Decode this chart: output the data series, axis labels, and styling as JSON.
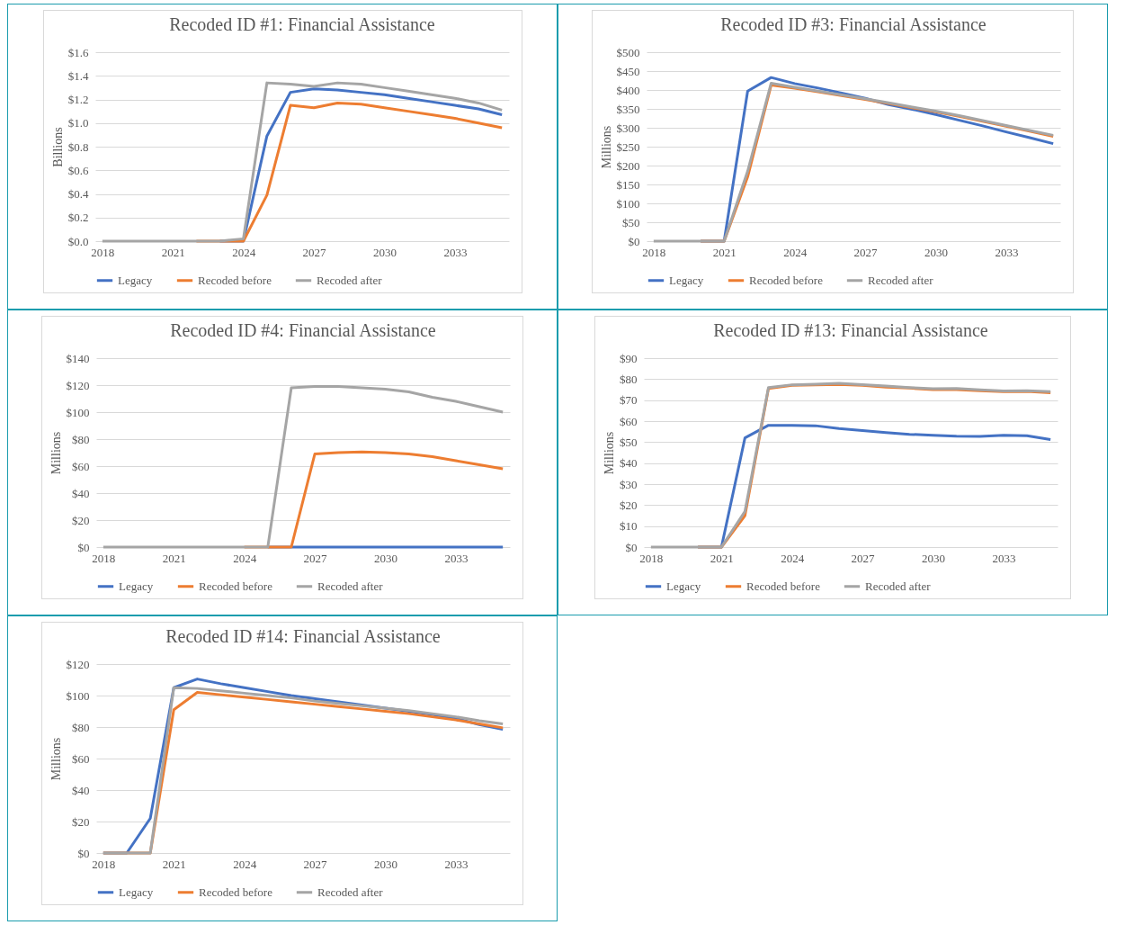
{
  "chart_data": [
    {
      "type": "line",
      "title": "Recoded ID #1:  Financial Assistance",
      "ylabel": "Billions",
      "categories": [
        "2018",
        null,
        null,
        "2021",
        null,
        null,
        "2024",
        null,
        null,
        "2027",
        null,
        null,
        "2030",
        null,
        null,
        "2033",
        null,
        null
      ],
      "ylim": [
        0,
        1.6
      ],
      "yticks": [
        {
          "value": 0,
          "label": "$0.0"
        },
        {
          "value": 0.2,
          "label": "$0.2"
        },
        {
          "value": 0.4,
          "label": "$0.4"
        },
        {
          "value": 0.6,
          "label": "$0.6"
        },
        {
          "value": 0.8,
          "label": "$0.8"
        },
        {
          "value": 1.0,
          "label": "$1.0"
        },
        {
          "value": 1.2,
          "label": "$1.2"
        },
        {
          "value": 1.4,
          "label": "$1.4"
        },
        {
          "value": 1.6,
          "label": "$1.6"
        }
      ],
      "grid": "y",
      "legend": "bottom",
      "series": [
        {
          "name": "Legacy",
          "color": "#4472c4",
          "values": [
            null,
            null,
            null,
            null,
            null,
            0,
            0,
            0.89,
            1.26,
            1.29,
            1.28,
            1.26,
            1.24,
            1.21,
            1.18,
            1.15,
            1.12,
            1.07
          ]
        },
        {
          "name": "Recoded before",
          "color": "#ed7d31",
          "values": [
            null,
            null,
            null,
            null,
            0,
            0,
            0,
            0.39,
            1.15,
            1.13,
            1.17,
            1.16,
            1.13,
            1.1,
            1.07,
            1.04,
            1.0,
            0.96
          ]
        },
        {
          "name": "Recoded after",
          "color": "#a5a5a5",
          "values": [
            0,
            0,
            0,
            0,
            0,
            0,
            0.02,
            1.34,
            1.33,
            1.31,
            1.34,
            1.33,
            1.3,
            1.27,
            1.24,
            1.21,
            1.17,
            1.11
          ]
        }
      ]
    },
    {
      "type": "line",
      "title": "Recoded ID #3:  Financial Assistance",
      "ylabel": "Millions",
      "categories": [
        "2018",
        null,
        null,
        "2021",
        null,
        null,
        "2024",
        null,
        null,
        "2027",
        null,
        null,
        "2030",
        null,
        null,
        "2033",
        null,
        null
      ],
      "ylim": [
        0,
        500
      ],
      "yticks": [
        {
          "value": 0,
          "label": "$0"
        },
        {
          "value": 50,
          "label": "$50"
        },
        {
          "value": 100,
          "label": "$100"
        },
        {
          "value": 150,
          "label": "$150"
        },
        {
          "value": 200,
          "label": "$200"
        },
        {
          "value": 250,
          "label": "$250"
        },
        {
          "value": 300,
          "label": "$300"
        },
        {
          "value": 350,
          "label": "$350"
        },
        {
          "value": 400,
          "label": "$400"
        },
        {
          "value": 450,
          "label": "$450"
        },
        {
          "value": 500,
          "label": "$500"
        }
      ],
      "grid": "y",
      "legend": "bottom",
      "series": [
        {
          "name": "Legacy",
          "color": "#4472c4",
          "values": [
            null,
            null,
            0,
            0,
            397,
            433,
            417,
            405,
            392,
            378,
            361,
            349,
            335,
            320,
            305,
            289,
            274,
            258
          ]
        },
        {
          "name": "Recoded before",
          "color": "#ed7d31",
          "values": [
            null,
            null,
            0,
            0,
            170,
            413,
            405,
            395,
            385,
            375,
            364,
            353,
            342,
            330,
            317,
            304,
            291,
            277
          ]
        },
        {
          "name": "Recoded after",
          "color": "#a5a5a5",
          "values": [
            0,
            0,
            0,
            0,
            185,
            418,
            407,
            397,
            387,
            377,
            366,
            355,
            344,
            332,
            319,
            306,
            293,
            280
          ]
        }
      ]
    },
    {
      "type": "line",
      "title": "Recoded ID #4:  Financial Assistance",
      "ylabel": "Millions",
      "categories": [
        "2018",
        null,
        null,
        "2021",
        null,
        null,
        "2024",
        null,
        null,
        "2027",
        null,
        null,
        "2030",
        null,
        null,
        "2033",
        null,
        null
      ],
      "ylim": [
        0,
        140
      ],
      "yticks": [
        {
          "value": 0,
          "label": "$0"
        },
        {
          "value": 20,
          "label": "$20"
        },
        {
          "value": 40,
          "label": "$40"
        },
        {
          "value": 60,
          "label": "$60"
        },
        {
          "value": 80,
          "label": "$80"
        },
        {
          "value": 100,
          "label": "$100"
        },
        {
          "value": 120,
          "label": "$120"
        },
        {
          "value": 140,
          "label": "$140"
        }
      ],
      "grid": "y",
      "legend": "bottom",
      "series": [
        {
          "name": "Legacy",
          "color": "#4472c4",
          "values": [
            null,
            null,
            null,
            null,
            null,
            null,
            null,
            0,
            0,
            0,
            0,
            0,
            0,
            0,
            0,
            0,
            0,
            0
          ]
        },
        {
          "name": "Recoded before",
          "color": "#ed7d31",
          "values": [
            null,
            null,
            null,
            null,
            null,
            null,
            0,
            0,
            0,
            69,
            70,
            70.5,
            70,
            69,
            67,
            64,
            61,
            58
          ]
        },
        {
          "name": "Recoded after",
          "color": "#a5a5a5",
          "values": [
            0,
            0,
            0,
            0,
            0,
            0,
            0,
            0,
            118,
            119,
            119,
            118,
            117,
            115,
            111,
            108,
            104,
            100
          ]
        }
      ]
    },
    {
      "type": "line",
      "title": "Recoded ID #13:  Financial Assistance",
      "ylabel": "Millions",
      "categories": [
        "2018",
        null,
        null,
        "2021",
        null,
        null,
        "2024",
        null,
        null,
        "2027",
        null,
        null,
        "2030",
        null,
        null,
        "2033",
        null,
        null
      ],
      "ylim": [
        0,
        90
      ],
      "yticks": [
        {
          "value": 0,
          "label": "$0"
        },
        {
          "value": 10,
          "label": "$10"
        },
        {
          "value": 20,
          "label": "$20"
        },
        {
          "value": 30,
          "label": "$30"
        },
        {
          "value": 40,
          "label": "$40"
        },
        {
          "value": 50,
          "label": "$50"
        },
        {
          "value": 60,
          "label": "$60"
        },
        {
          "value": 70,
          "label": "$70"
        },
        {
          "value": 80,
          "label": "$80"
        },
        {
          "value": 90,
          "label": "$90"
        }
      ],
      "grid": "y",
      "legend": "bottom",
      "series": [
        {
          "name": "Legacy",
          "color": "#4472c4",
          "values": [
            null,
            null,
            0,
            0,
            52,
            58,
            58,
            57.8,
            56.5,
            55.5,
            54.5,
            53.7,
            53.3,
            52.8,
            52.7,
            53.2,
            53,
            51.2
          ]
        },
        {
          "name": "Recoded before",
          "color": "#ed7d31",
          "values": [
            null,
            null,
            0,
            0,
            15,
            75.5,
            77,
            77.2,
            77.5,
            77,
            76.2,
            75.7,
            75,
            75,
            74.5,
            74,
            74.1,
            73.5
          ]
        },
        {
          "name": "Recoded after",
          "color": "#a5a5a5",
          "values": [
            0,
            0,
            0,
            0,
            17,
            76,
            77.3,
            77.6,
            78,
            77.4,
            76.7,
            76,
            75.4,
            75.5,
            74.9,
            74.4,
            74.5,
            74
          ]
        }
      ]
    },
    {
      "type": "line",
      "title": "Recoded ID #14:  Financial Assistance",
      "ylabel": "Millions",
      "categories": [
        "2018",
        null,
        null,
        "2021",
        null,
        null,
        "2024",
        null,
        null,
        "2027",
        null,
        null,
        "2030",
        null,
        null,
        "2033",
        null,
        null
      ],
      "ylim": [
        0,
        120
      ],
      "yticks": [
        {
          "value": 0,
          "label": "$0"
        },
        {
          "value": 20,
          "label": "$20"
        },
        {
          "value": 40,
          "label": "$40"
        },
        {
          "value": 60,
          "label": "$60"
        },
        {
          "value": 80,
          "label": "$80"
        },
        {
          "value": 100,
          "label": "$100"
        },
        {
          "value": 120,
          "label": "$120"
        }
      ],
      "grid": "y",
      "legend": "bottom",
      "series": [
        {
          "name": "Legacy",
          "color": "#4472c4",
          "values": [
            0,
            0,
            22,
            105,
            110.5,
            107.5,
            105,
            102.5,
            100,
            98,
            96,
            94,
            92,
            90,
            88,
            85.5,
            81.5,
            78.5
          ]
        },
        {
          "name": "Recoded before",
          "color": "#ed7d31",
          "values": [
            0,
            0,
            0,
            91,
            102,
            100.5,
            99,
            97.5,
            96,
            94.5,
            93,
            91.5,
            90,
            88.5,
            86.5,
            84.5,
            82,
            79.5
          ]
        },
        {
          "name": "Recoded after",
          "color": "#a5a5a5",
          "values": [
            0,
            0,
            0,
            105,
            104.5,
            103,
            101.5,
            100,
            98.5,
            96.5,
            95,
            93.5,
            92,
            90.5,
            88.5,
            86.5,
            84,
            82
          ]
        }
      ]
    }
  ]
}
